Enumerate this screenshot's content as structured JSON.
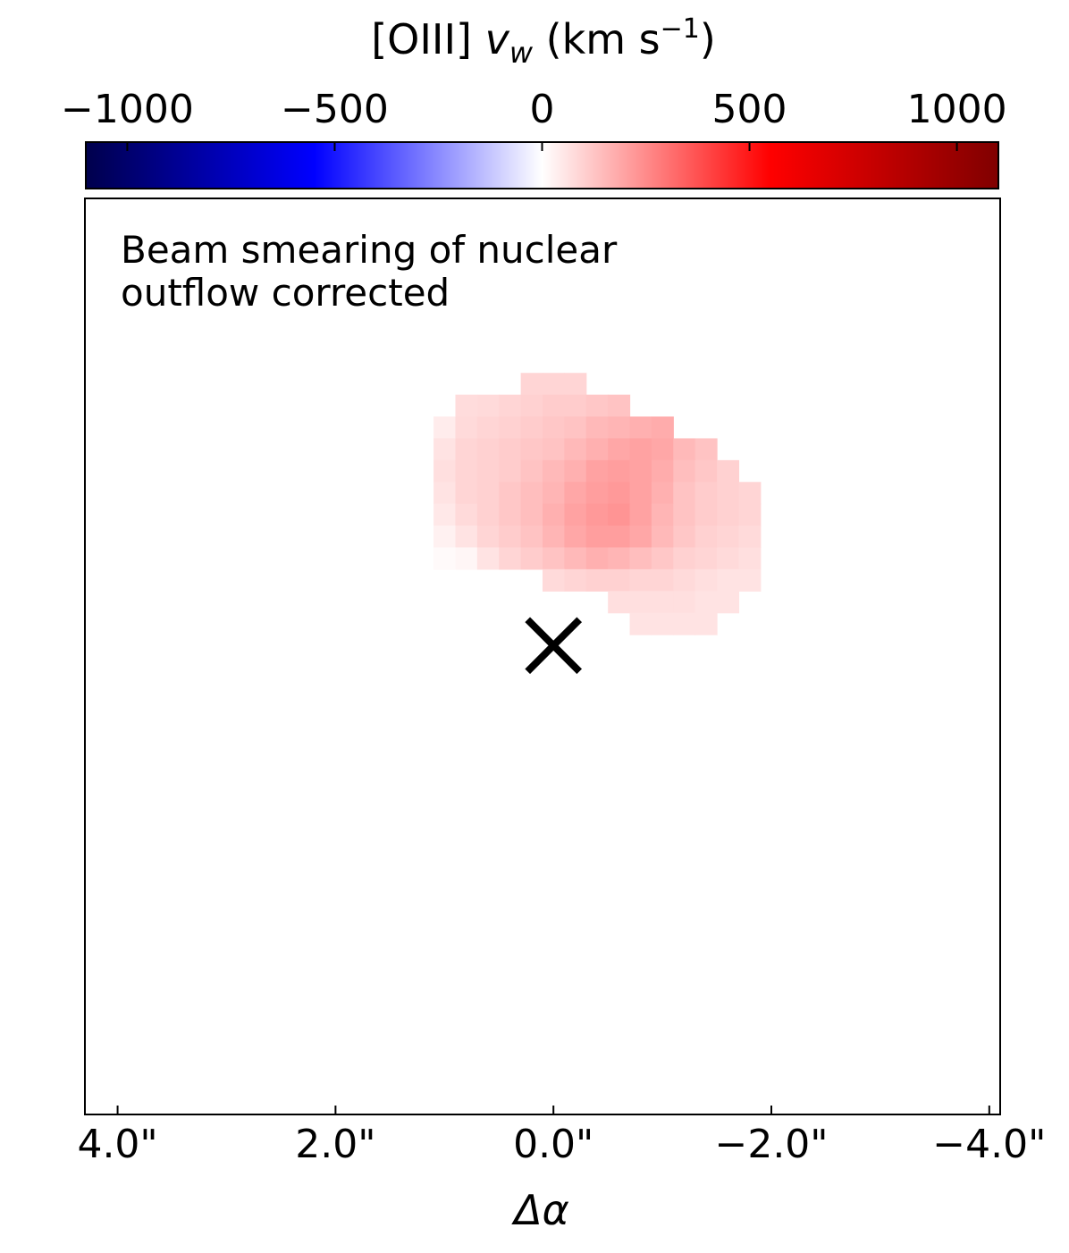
{
  "chart_data": {
    "type": "heatmap",
    "title": "",
    "colorbar": {
      "label_prefix": "[OIII] ",
      "label_var": "v",
      "label_sub": "w",
      "label_unit_open": " (km s",
      "label_exp": "−1",
      "label_close": ")",
      "vmin": -1100,
      "vmax": 1100,
      "ticks": [
        -1000,
        -500,
        0,
        500,
        1000
      ],
      "tick_labels": [
        "−1000",
        "−500",
        "0",
        "500",
        "1000"
      ],
      "colormap": "seismic",
      "colormap_stops": [
        "#00004c",
        "#0000ff",
        "#ffffff",
        "#ff0000",
        "#800000"
      ],
      "location": "top"
    },
    "xlabel": "Δα",
    "xlim": [
      4.3,
      -4.1
    ],
    "xticks": [
      4.0,
      2.0,
      0.0,
      -2.0,
      -4.0
    ],
    "xtick_labels": [
      "4.0\"",
      "2.0\"",
      "0.0\"",
      "−2.0\"",
      "−4.0\""
    ],
    "ylim": [
      -4.3,
      4.1
    ],
    "annotation_lines": [
      "Beam smearing of nuclear",
      "outflow corrected"
    ],
    "annotation_placement": "top-left",
    "nucleus_marker": {
      "symbol": "x",
      "ra": 0.0,
      "dec": 0.0,
      "color": "#000000"
    },
    "pixel_scale_arcsec": 0.2,
    "cells": [
      {
        "ra": 0.2,
        "dec": 2.4,
        "v": 90
      },
      {
        "ra": 0.0,
        "dec": 2.4,
        "v": 90
      },
      {
        "ra": -0.2,
        "dec": 2.4,
        "v": 90
      },
      {
        "ra": 0.8,
        "dec": 2.2,
        "v": 75
      },
      {
        "ra": 0.6,
        "dec": 2.2,
        "v": 80
      },
      {
        "ra": 0.4,
        "dec": 2.2,
        "v": 90
      },
      {
        "ra": 0.2,
        "dec": 2.2,
        "v": 100
      },
      {
        "ra": 0.0,
        "dec": 2.2,
        "v": 110
      },
      {
        "ra": -0.2,
        "dec": 2.2,
        "v": 110
      },
      {
        "ra": -0.4,
        "dec": 2.2,
        "v": 120
      },
      {
        "ra": -0.6,
        "dec": 2.2,
        "v": 130
      },
      {
        "ra": 1.0,
        "dec": 2.0,
        "v": 40
      },
      {
        "ra": 0.8,
        "dec": 2.0,
        "v": 80
      },
      {
        "ra": 0.6,
        "dec": 2.0,
        "v": 90
      },
      {
        "ra": 0.4,
        "dec": 2.0,
        "v": 100
      },
      {
        "ra": 0.2,
        "dec": 2.0,
        "v": 110
      },
      {
        "ra": 0.0,
        "dec": 2.0,
        "v": 120
      },
      {
        "ra": -0.2,
        "dec": 2.0,
        "v": 130
      },
      {
        "ra": -0.4,
        "dec": 2.0,
        "v": 150
      },
      {
        "ra": -0.6,
        "dec": 2.0,
        "v": 160
      },
      {
        "ra": -0.8,
        "dec": 2.0,
        "v": 170
      },
      {
        "ra": -1.0,
        "dec": 2.0,
        "v": 180
      },
      {
        "ra": 1.0,
        "dec": 1.8,
        "v": 60
      },
      {
        "ra": 0.8,
        "dec": 1.8,
        "v": 90
      },
      {
        "ra": 0.6,
        "dec": 1.8,
        "v": 100
      },
      {
        "ra": 0.4,
        "dec": 1.8,
        "v": 110
      },
      {
        "ra": 0.2,
        "dec": 1.8,
        "v": 120
      },
      {
        "ra": 0.0,
        "dec": 1.8,
        "v": 130
      },
      {
        "ra": -0.2,
        "dec": 1.8,
        "v": 150
      },
      {
        "ra": -0.4,
        "dec": 1.8,
        "v": 170
      },
      {
        "ra": -0.6,
        "dec": 1.8,
        "v": 190
      },
      {
        "ra": -0.8,
        "dec": 1.8,
        "v": 200
      },
      {
        "ra": -1.0,
        "dec": 1.8,
        "v": 190
      },
      {
        "ra": -1.2,
        "dec": 1.8,
        "v": 150
      },
      {
        "ra": -1.4,
        "dec": 1.8,
        "v": 130
      },
      {
        "ra": 1.0,
        "dec": 1.6,
        "v": 70
      },
      {
        "ra": 0.8,
        "dec": 1.6,
        "v": 90
      },
      {
        "ra": 0.6,
        "dec": 1.6,
        "v": 100
      },
      {
        "ra": 0.4,
        "dec": 1.6,
        "v": 110
      },
      {
        "ra": 0.2,
        "dec": 1.6,
        "v": 130
      },
      {
        "ra": 0.0,
        "dec": 1.6,
        "v": 150
      },
      {
        "ra": -0.2,
        "dec": 1.6,
        "v": 170
      },
      {
        "ra": -0.4,
        "dec": 1.6,
        "v": 200
      },
      {
        "ra": -0.6,
        "dec": 1.6,
        "v": 210
      },
      {
        "ra": -0.8,
        "dec": 1.6,
        "v": 200
      },
      {
        "ra": -1.0,
        "dec": 1.6,
        "v": 180
      },
      {
        "ra": -1.2,
        "dec": 1.6,
        "v": 140
      },
      {
        "ra": -1.4,
        "dec": 1.6,
        "v": 120
      },
      {
        "ra": -1.6,
        "dec": 1.6,
        "v": 100
      },
      {
        "ra": 1.0,
        "dec": 1.4,
        "v": 60
      },
      {
        "ra": 0.8,
        "dec": 1.4,
        "v": 90
      },
      {
        "ra": 0.6,
        "dec": 1.4,
        "v": 100
      },
      {
        "ra": 0.4,
        "dec": 1.4,
        "v": 120
      },
      {
        "ra": 0.2,
        "dec": 1.4,
        "v": 140
      },
      {
        "ra": 0.0,
        "dec": 1.4,
        "v": 160
      },
      {
        "ra": -0.2,
        "dec": 1.4,
        "v": 190
      },
      {
        "ra": -0.4,
        "dec": 1.4,
        "v": 210
      },
      {
        "ra": -0.6,
        "dec": 1.4,
        "v": 220
      },
      {
        "ra": -0.8,
        "dec": 1.4,
        "v": 200
      },
      {
        "ra": -1.0,
        "dec": 1.4,
        "v": 170
      },
      {
        "ra": -1.2,
        "dec": 1.4,
        "v": 130
      },
      {
        "ra": -1.4,
        "dec": 1.4,
        "v": 110
      },
      {
        "ra": -1.6,
        "dec": 1.4,
        "v": 100
      },
      {
        "ra": -1.8,
        "dec": 1.4,
        "v": 90
      },
      {
        "ra": 1.0,
        "dec": 1.2,
        "v": 50
      },
      {
        "ra": 0.8,
        "dec": 1.2,
        "v": 80
      },
      {
        "ra": 0.6,
        "dec": 1.2,
        "v": 100
      },
      {
        "ra": 0.4,
        "dec": 1.2,
        "v": 120
      },
      {
        "ra": 0.2,
        "dec": 1.2,
        "v": 140
      },
      {
        "ra": 0.0,
        "dec": 1.2,
        "v": 170
      },
      {
        "ra": -0.2,
        "dec": 1.2,
        "v": 200
      },
      {
        "ra": -0.4,
        "dec": 1.2,
        "v": 220
      },
      {
        "ra": -0.6,
        "dec": 1.2,
        "v": 230
      },
      {
        "ra": -0.8,
        "dec": 1.2,
        "v": 200
      },
      {
        "ra": -1.0,
        "dec": 1.2,
        "v": 160
      },
      {
        "ra": -1.2,
        "dec": 1.2,
        "v": 130
      },
      {
        "ra": -1.4,
        "dec": 1.2,
        "v": 110
      },
      {
        "ra": -1.6,
        "dec": 1.2,
        "v": 100
      },
      {
        "ra": -1.8,
        "dec": 1.2,
        "v": 90
      },
      {
        "ra": 1.0,
        "dec": 1.0,
        "v": 30
      },
      {
        "ra": 0.8,
        "dec": 1.0,
        "v": 60
      },
      {
        "ra": 0.6,
        "dec": 1.0,
        "v": 90
      },
      {
        "ra": 0.4,
        "dec": 1.0,
        "v": 110
      },
      {
        "ra": 0.2,
        "dec": 1.0,
        "v": 130
      },
      {
        "ra": 0.0,
        "dec": 1.0,
        "v": 160
      },
      {
        "ra": -0.2,
        "dec": 1.0,
        "v": 190
      },
      {
        "ra": -0.4,
        "dec": 1.0,
        "v": 210
      },
      {
        "ra": -0.6,
        "dec": 1.0,
        "v": 210
      },
      {
        "ra": -0.8,
        "dec": 1.0,
        "v": 190
      },
      {
        "ra": -1.0,
        "dec": 1.0,
        "v": 150
      },
      {
        "ra": -1.2,
        "dec": 1.0,
        "v": 120
      },
      {
        "ra": -1.4,
        "dec": 1.0,
        "v": 100
      },
      {
        "ra": -1.6,
        "dec": 1.0,
        "v": 90
      },
      {
        "ra": -1.8,
        "dec": 1.0,
        "v": 80
      },
      {
        "ra": 1.0,
        "dec": 0.8,
        "v": 10
      },
      {
        "ra": 0.8,
        "dec": 0.8,
        "v": 20
      },
      {
        "ra": 0.6,
        "dec": 0.8,
        "v": 60
      },
      {
        "ra": 0.4,
        "dec": 0.8,
        "v": 90
      },
      {
        "ra": 0.2,
        "dec": 0.8,
        "v": 110
      },
      {
        "ra": 0.0,
        "dec": 0.8,
        "v": 130
      },
      {
        "ra": -0.2,
        "dec": 0.8,
        "v": 150
      },
      {
        "ra": -0.4,
        "dec": 0.8,
        "v": 170
      },
      {
        "ra": -0.6,
        "dec": 0.8,
        "v": 160
      },
      {
        "ra": -0.8,
        "dec": 0.8,
        "v": 140
      },
      {
        "ra": -1.0,
        "dec": 0.8,
        "v": 120
      },
      {
        "ra": -1.2,
        "dec": 0.8,
        "v": 100
      },
      {
        "ra": -1.4,
        "dec": 0.8,
        "v": 90
      },
      {
        "ra": -1.6,
        "dec": 0.8,
        "v": 80
      },
      {
        "ra": -1.8,
        "dec": 0.8,
        "v": 70
      },
      {
        "ra": 0.0,
        "dec": 0.6,
        "v": 80
      },
      {
        "ra": -0.2,
        "dec": 0.6,
        "v": 90
      },
      {
        "ra": -0.4,
        "dec": 0.6,
        "v": 100
      },
      {
        "ra": -0.6,
        "dec": 0.6,
        "v": 100
      },
      {
        "ra": -0.8,
        "dec": 0.6,
        "v": 90
      },
      {
        "ra": -1.0,
        "dec": 0.6,
        "v": 90
      },
      {
        "ra": -1.2,
        "dec": 0.6,
        "v": 80
      },
      {
        "ra": -1.4,
        "dec": 0.6,
        "v": 70
      },
      {
        "ra": -1.6,
        "dec": 0.6,
        "v": 60
      },
      {
        "ra": -1.8,
        "dec": 0.6,
        "v": 60
      },
      {
        "ra": -0.6,
        "dec": 0.4,
        "v": 70
      },
      {
        "ra": -0.8,
        "dec": 0.4,
        "v": 70
      },
      {
        "ra": -1.0,
        "dec": 0.4,
        "v": 70
      },
      {
        "ra": -1.2,
        "dec": 0.4,
        "v": 70
      },
      {
        "ra": -1.4,
        "dec": 0.4,
        "v": 60
      },
      {
        "ra": -1.6,
        "dec": 0.4,
        "v": 60
      },
      {
        "ra": -0.8,
        "dec": 0.2,
        "v": 60
      },
      {
        "ra": -1.0,
        "dec": 0.2,
        "v": 60
      },
      {
        "ra": -1.2,
        "dec": 0.2,
        "v": 60
      },
      {
        "ra": -1.4,
        "dec": 0.2,
        "v": 60
      }
    ]
  }
}
